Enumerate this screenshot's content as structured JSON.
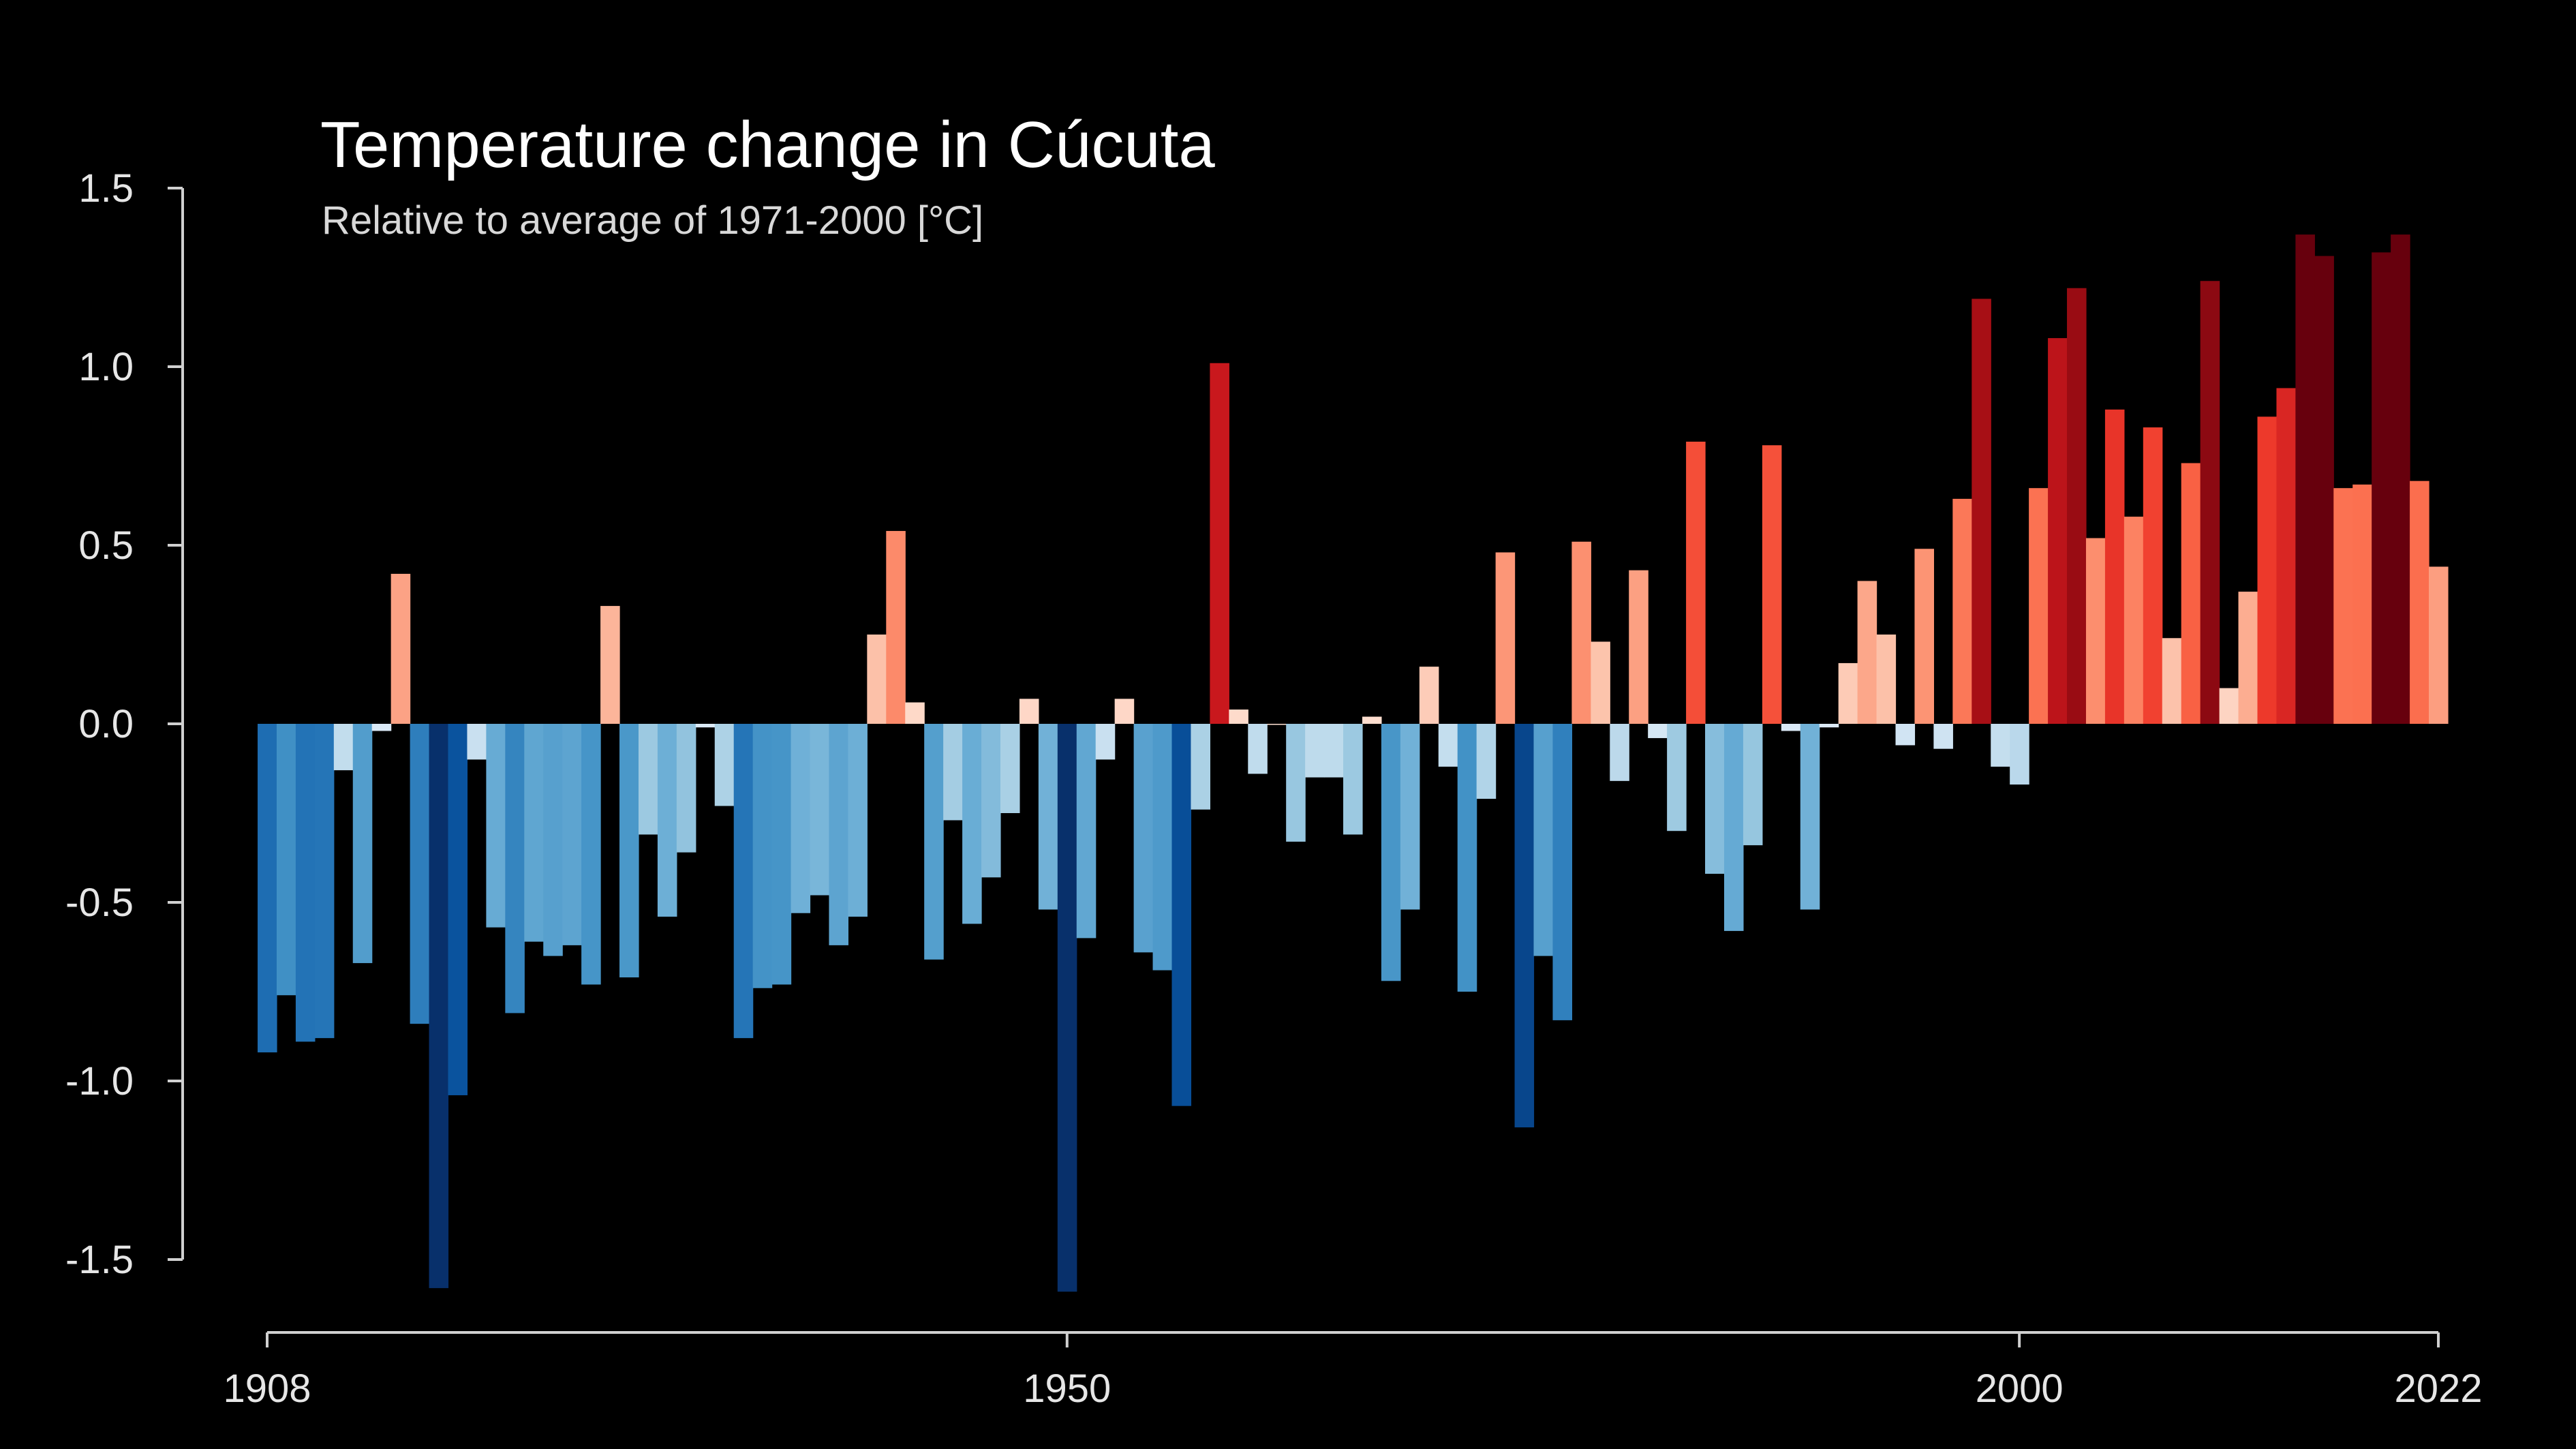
{
  "chart_data": {
    "type": "bar",
    "title": "Temperature change in Cúcuta",
    "subtitle": "Relative to average of 1971-2000  [°C]",
    "xlabel": "",
    "ylabel": "",
    "xlim": [
      1908,
      2022
    ],
    "ylim": [
      -1.6,
      1.5
    ],
    "yticks": [
      "1.5",
      "1.0",
      "0.5",
      "0.0",
      "-0.5",
      "-1.0",
      "-1.5"
    ],
    "ytick_values": [
      1.5,
      1.0,
      0.5,
      0.0,
      -0.5,
      -1.0,
      -1.5
    ],
    "xticks": [
      "1908",
      "1950",
      "2000",
      "2022"
    ],
    "xtick_values": [
      1908,
      1950,
      2000,
      2022
    ],
    "grid": false,
    "legend": "none",
    "color_scale": {
      "cold_dark": "#08306b",
      "cold_mid": "#2171b5",
      "cold_light": "#6baed6",
      "cold_pale": "#c6dbef",
      "warm_pale": "#fcbba1",
      "warm_light": "#fb6a4a",
      "warm_mid": "#cb181d",
      "warm_dark": "#67000d"
    },
    "years": [
      1908,
      1909,
      1910,
      1911,
      1912,
      1913,
      1914,
      1915,
      1916,
      1917,
      1918,
      1919,
      1920,
      1921,
      1922,
      1923,
      1924,
      1925,
      1926,
      1927,
      1928,
      1929,
      1930,
      1931,
      1932,
      1933,
      1934,
      1935,
      1936,
      1937,
      1938,
      1939,
      1940,
      1941,
      1942,
      1943,
      1944,
      1945,
      1946,
      1947,
      1948,
      1949,
      1950,
      1951,
      1952,
      1953,
      1954,
      1955,
      1956,
      1957,
      1958,
      1959,
      1960,
      1961,
      1962,
      1963,
      1964,
      1965,
      1966,
      1967,
      1968,
      1969,
      1970,
      1971,
      1972,
      1973,
      1974,
      1975,
      1976,
      1977,
      1978,
      1979,
      1980,
      1981,
      1982,
      1983,
      1984,
      1985,
      1986,
      1987,
      1988,
      1989,
      1990,
      1991,
      1992,
      1993,
      1994,
      1995,
      1996,
      1997,
      1998,
      1999,
      2000,
      2001,
      2002,
      2003,
      2004,
      2005,
      2006,
      2007,
      2008,
      2009,
      2010,
      2011,
      2012,
      2013,
      2014,
      2015,
      2016,
      2017,
      2018,
      2019,
      2020,
      2021,
      2022
    ],
    "values": [
      -0.92,
      -0.76,
      -0.89,
      -0.88,
      -0.13,
      -0.67,
      -0.02,
      0.42,
      -0.84,
      -1.58,
      -1.04,
      -0.1,
      -0.57,
      -0.81,
      -0.61,
      -0.65,
      -0.62,
      -0.73,
      0.33,
      -0.71,
      -0.31,
      -0.54,
      -0.36,
      -0.01,
      -0.23,
      -0.88,
      -0.74,
      -0.73,
      -0.53,
      -0.48,
      -0.62,
      -0.54,
      0.25,
      0.54,
      0.06,
      -0.66,
      -0.27,
      -0.56,
      -0.43,
      -0.25,
      0.07,
      -0.52,
      -1.59,
      -0.6,
      -0.1,
      0.07,
      -0.64,
      -0.69,
      -1.07,
      -0.24,
      1.01,
      0.04,
      -0.14,
      0.0,
      -0.33,
      -0.15,
      -0.15,
      -0.31,
      0.02,
      -0.72,
      -0.52,
      0.16,
      -0.12,
      -0.75,
      -0.21,
      0.48,
      -1.13,
      -0.65,
      -0.83,
      0.51,
      0.23,
      -0.16,
      0.43,
      -0.04,
      -0.3,
      0.79,
      -0.42,
      -0.58,
      -0.34,
      0.78,
      -0.02,
      -0.52,
      -0.01,
      0.17,
      0.4,
      0.25,
      -0.06,
      0.49,
      -0.07,
      0.63,
      1.19,
      -0.12,
      -0.17,
      0.66,
      1.08,
      1.22,
      0.52,
      0.88,
      0.58,
      0.83,
      0.24,
      0.73,
      1.24,
      0.1,
      0.37,
      0.86,
      0.94,
      1.37,
      1.31,
      0.66,
      0.67,
      1.32,
      1.37,
      0.68,
      0.44
    ]
  }
}
